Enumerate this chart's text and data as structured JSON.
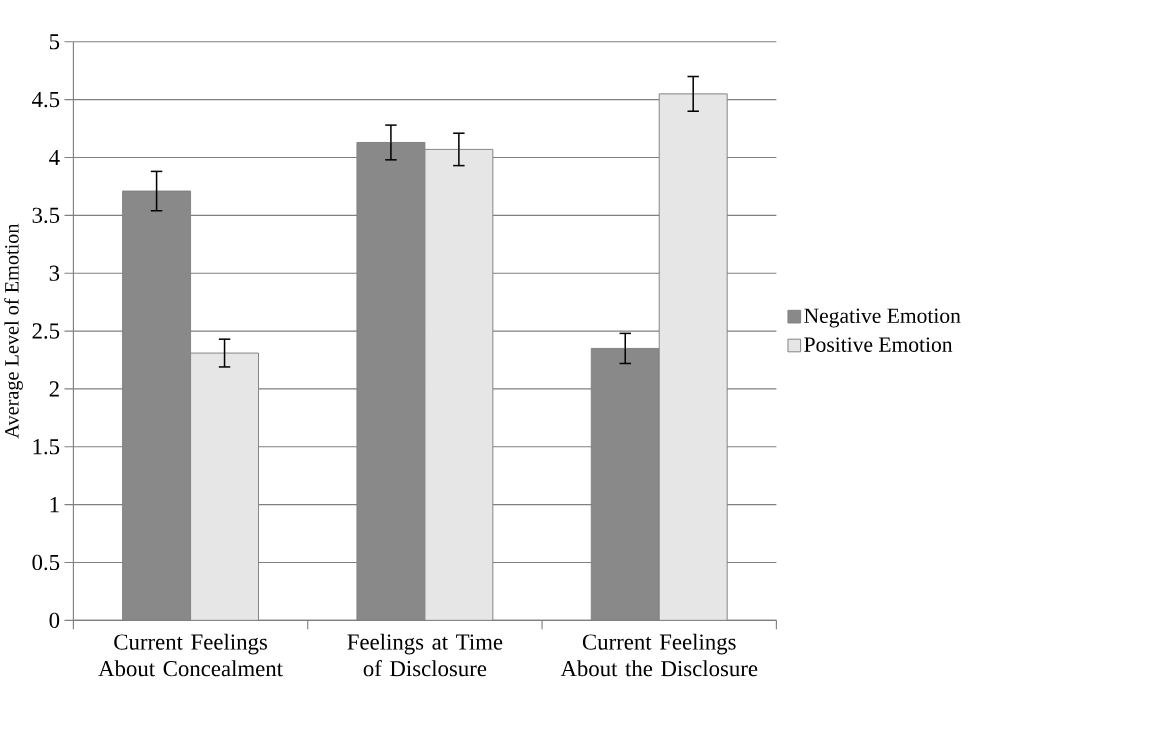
{
  "chart_data": {
    "type": "bar",
    "ylabel": "Average Level of Emotion",
    "categories": [
      "Current Feelings About Concealment",
      "Feelings at Time of Disclosure",
      "Current Feelings About the Disclosure"
    ],
    "series": [
      {
        "name": "Negative Emotion",
        "color": "#898989",
        "values": [
          3.71,
          4.13,
          2.35
        ],
        "errors": [
          0.17,
          0.15,
          0.13
        ]
      },
      {
        "name": "Positive Emotion",
        "color": "#e6e6e6",
        "values": [
          2.31,
          4.07,
          4.55
        ],
        "errors": [
          0.12,
          0.14,
          0.15
        ]
      }
    ],
    "ylim": [
      0,
      5
    ],
    "yticks": [
      0,
      0.5,
      1,
      1.5,
      2,
      2.5,
      3,
      3.5,
      4,
      4.5,
      5
    ],
    "grid": "y",
    "legend": "right"
  }
}
